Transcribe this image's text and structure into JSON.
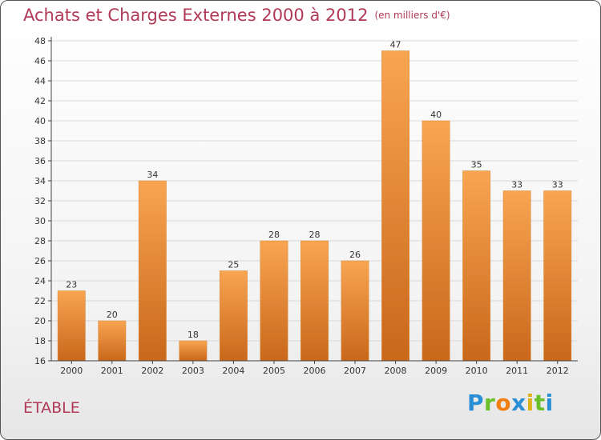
{
  "header": {
    "title": "Achats et Charges Externes 2000 à 2012",
    "unit": "(en milliers d'€)"
  },
  "footer": {
    "commune": "ÉTABLE",
    "logo_letters": [
      "P",
      "r",
      "o",
      "x",
      "i",
      "t",
      "i"
    ],
    "logo_colors": [
      "#2b8fd6",
      "#6bbf2a",
      "#f07d12",
      "#2b8fd6",
      "#e0b21a",
      "#6bbf2a",
      "#2b8fd6"
    ]
  },
  "colors": {
    "bar_top": "#f8a552",
    "bar_bottom": "#c9671a",
    "title": "#b03a58",
    "grid": "#d9d9d9"
  },
  "chart_data": {
    "type": "bar",
    "title": "Achats et Charges Externes 2000 à 2012",
    "unit_label": "(en milliers d'€)",
    "categories": [
      "2000",
      "2001",
      "2002",
      "2003",
      "2004",
      "2005",
      "2006",
      "2007",
      "2008",
      "2009",
      "2010",
      "2011",
      "2012"
    ],
    "values": [
      23,
      20,
      34,
      18,
      25,
      28,
      28,
      26,
      47,
      40,
      35,
      33,
      33
    ],
    "ylim": [
      16,
      48
    ],
    "yticks": [
      16,
      18,
      20,
      22,
      24,
      26,
      28,
      30,
      32,
      34,
      36,
      38,
      40,
      42,
      44,
      46,
      48
    ],
    "grid": true,
    "data_labels": true
  }
}
